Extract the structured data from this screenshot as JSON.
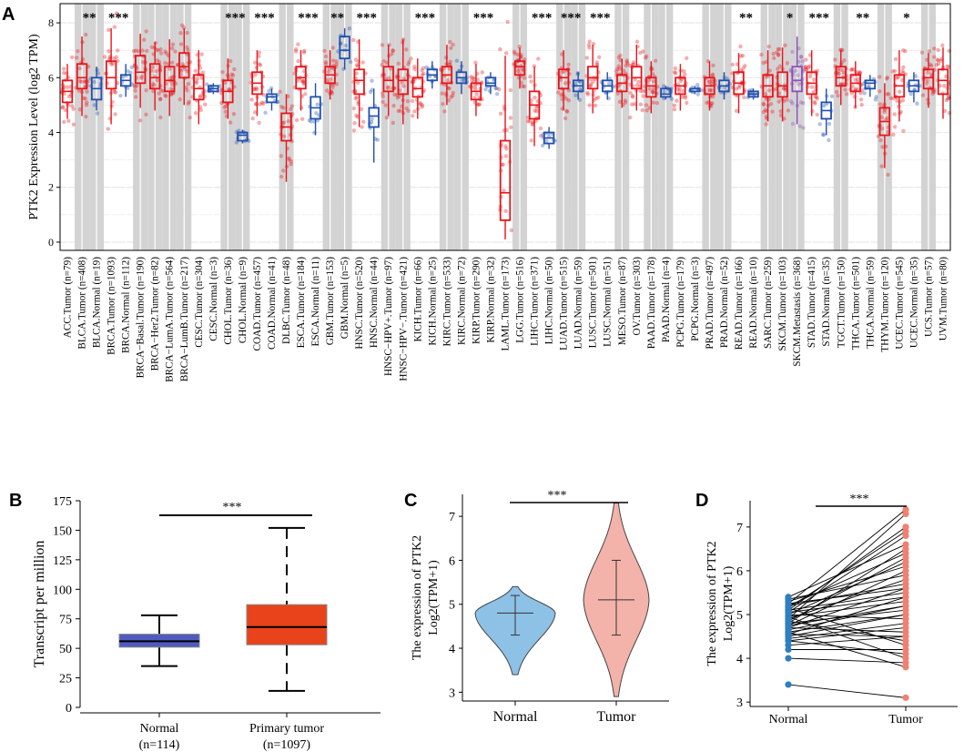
{
  "panel_labels": [
    "A",
    "B",
    "C",
    "D"
  ],
  "chart_data": [
    {
      "panel": "A",
      "type": "box",
      "ylabel": "PTK2 Expression Level (log2 TPM)",
      "ylim": [
        -0.3,
        8.7
      ],
      "yticks": [
        0,
        2,
        4,
        6,
        8
      ],
      "colors": {
        "tumor": "#e8141a",
        "normal": "#1f4fb0",
        "metastasis": "#8a4fb8",
        "shade": "#d3d3d3"
      },
      "categories": [
        {
          "label": "ACC.Tumor (n=79)",
          "kind": "tumor",
          "q1": 5.1,
          "median": 5.5,
          "q3": 5.9,
          "lo": 4.5,
          "hi": 6.5,
          "sig": "",
          "shade": false
        },
        {
          "label": "BLCA.Tumor (n=408)",
          "kind": "tumor",
          "q1": 5.6,
          "median": 6.0,
          "q3": 6.5,
          "lo": 4.6,
          "hi": 7.5,
          "sig": "**",
          "shade": true
        },
        {
          "label": "BLCA.Normal (n=19)",
          "kind": "normal",
          "q1": 5.2,
          "median": 5.6,
          "q3": 6.0,
          "lo": 4.8,
          "hi": 6.4,
          "sig": "",
          "shade": true
        },
        {
          "label": "BRCA.Tumor (n=1093)",
          "kind": "tumor",
          "q1": 5.6,
          "median": 6.0,
          "q3": 6.6,
          "lo": 4.3,
          "hi": 7.8,
          "sig": "***",
          "shade": false
        },
        {
          "label": "BRCA.Normal (n=112)",
          "kind": "normal",
          "q1": 5.7,
          "median": 5.9,
          "q3": 6.1,
          "lo": 5.3,
          "hi": 6.5,
          "sig": "",
          "shade": false
        },
        {
          "label": "BRCA−Basal.Tumor (n=190)",
          "kind": "tumor",
          "q1": 5.8,
          "median": 6.2,
          "q3": 6.8,
          "lo": 4.9,
          "hi": 7.6,
          "sig": "",
          "shade": true
        },
        {
          "label": "BRCA−Her2.Tumor (n=82)",
          "kind": "tumor",
          "q1": 5.6,
          "median": 6.0,
          "q3": 6.5,
          "lo": 4.8,
          "hi": 7.3,
          "sig": "",
          "shade": true
        },
        {
          "label": "BRCA−LumA.Tumor (n=564)",
          "kind": "tumor",
          "q1": 5.5,
          "median": 5.9,
          "q3": 6.4,
          "lo": 4.6,
          "hi": 7.4,
          "sig": "",
          "shade": true
        },
        {
          "label": "BRCA−LumB.Tumor (n=217)",
          "kind": "tumor",
          "q1": 6.0,
          "median": 6.4,
          "q3": 6.9,
          "lo": 5.0,
          "hi": 7.8,
          "sig": "",
          "shade": true
        },
        {
          "label": "CESC.Tumor (n=304)",
          "kind": "tumor",
          "q1": 5.2,
          "median": 5.6,
          "q3": 6.1,
          "lo": 4.3,
          "hi": 7.0,
          "sig": "",
          "shade": false
        },
        {
          "label": "CESC.Normal (n=3)",
          "kind": "normal",
          "q1": 5.5,
          "median": 5.6,
          "q3": 5.7,
          "lo": 5.4,
          "hi": 5.8,
          "sig": "",
          "shade": false
        },
        {
          "label": "CHOL.Tumor (n=36)",
          "kind": "tumor",
          "q1": 5.1,
          "median": 5.5,
          "q3": 5.9,
          "lo": 4.5,
          "hi": 6.7,
          "sig": "***",
          "shade": true
        },
        {
          "label": "CHOL.Normal (n=9)",
          "kind": "normal",
          "q1": 3.7,
          "median": 3.9,
          "q3": 4.0,
          "lo": 3.6,
          "hi": 4.1,
          "sig": "",
          "shade": true
        },
        {
          "label": "COAD.Tumor (n=457)",
          "kind": "tumor",
          "q1": 5.4,
          "median": 5.8,
          "q3": 6.2,
          "lo": 4.6,
          "hi": 7.0,
          "sig": "***",
          "shade": false
        },
        {
          "label": "COAD.Normal (n=41)",
          "kind": "normal",
          "q1": 5.1,
          "median": 5.3,
          "q3": 5.4,
          "lo": 4.8,
          "hi": 5.6,
          "sig": "",
          "shade": false
        },
        {
          "label": "DLBC.Tumor (n=48)",
          "kind": "tumor",
          "q1": 3.7,
          "median": 4.2,
          "q3": 4.7,
          "lo": 2.2,
          "hi": 5.4,
          "sig": "",
          "shade": true
        },
        {
          "label": "ESCA.Tumor (n=184)",
          "kind": "tumor",
          "q1": 5.6,
          "median": 6.0,
          "q3": 6.4,
          "lo": 4.8,
          "hi": 7.0,
          "sig": "***",
          "shade": false
        },
        {
          "label": "ESCA.Normal (n=11)",
          "kind": "normal",
          "q1": 4.5,
          "median": 4.9,
          "q3": 5.3,
          "lo": 3.9,
          "hi": 5.8,
          "sig": "",
          "shade": false
        },
        {
          "label": "GBM.Tumor (n=153)",
          "kind": "tumor",
          "q1": 5.8,
          "median": 6.1,
          "q3": 6.4,
          "lo": 5.2,
          "hi": 7.0,
          "sig": "**",
          "shade": true
        },
        {
          "label": "GBM.Normal (n=5)",
          "kind": "normal",
          "q1": 6.7,
          "median": 7.0,
          "q3": 7.5,
          "lo": 6.3,
          "hi": 7.8,
          "sig": "",
          "shade": true
        },
        {
          "label": "HNSC.Tumor (n=520)",
          "kind": "tumor",
          "q1": 5.4,
          "median": 5.9,
          "q3": 6.3,
          "lo": 4.2,
          "hi": 7.4,
          "sig": "***",
          "shade": false
        },
        {
          "label": "HNSC.Normal (n=44)",
          "kind": "normal",
          "q1": 4.2,
          "median": 4.6,
          "q3": 4.9,
          "lo": 2.9,
          "hi": 5.6,
          "sig": "",
          "shade": false
        },
        {
          "label": "HNSC−HPV+.Tumor (n=97)",
          "kind": "tumor",
          "q1": 5.5,
          "median": 5.9,
          "q3": 6.4,
          "lo": 4.6,
          "hi": 7.2,
          "sig": "",
          "shade": true
        },
        {
          "label": "HNSC−HPV−.Tumor (n=421)",
          "kind": "tumor",
          "q1": 5.4,
          "median": 5.9,
          "q3": 6.3,
          "lo": 4.3,
          "hi": 7.4,
          "sig": "",
          "shade": true
        },
        {
          "label": "KICH.Tumor (n=66)",
          "kind": "tumor",
          "q1": 5.3,
          "median": 5.6,
          "q3": 6.0,
          "lo": 4.5,
          "hi": 6.7,
          "sig": "***",
          "shade": false
        },
        {
          "label": "KICH.Normal (n=25)",
          "kind": "normal",
          "q1": 5.9,
          "median": 6.1,
          "q3": 6.3,
          "lo": 5.6,
          "hi": 6.6,
          "sig": "",
          "shade": false
        },
        {
          "label": "KIRC.Tumor (n=533)",
          "kind": "tumor",
          "q1": 5.8,
          "median": 6.1,
          "q3": 6.4,
          "lo": 5.0,
          "hi": 7.2,
          "sig": "",
          "shade": true
        },
        {
          "label": "KIRC.Normal (n=72)",
          "kind": "normal",
          "q1": 5.8,
          "median": 6.0,
          "q3": 6.2,
          "lo": 5.4,
          "hi": 6.6,
          "sig": "",
          "shade": true
        },
        {
          "label": "KIRP.Tumor (n=290)",
          "kind": "tumor",
          "q1": 5.2,
          "median": 5.5,
          "q3": 5.8,
          "lo": 4.6,
          "hi": 6.5,
          "sig": "***",
          "shade": false
        },
        {
          "label": "KIRP.Normal (n=32)",
          "kind": "normal",
          "q1": 5.7,
          "median": 5.8,
          "q3": 6.0,
          "lo": 5.4,
          "hi": 6.2,
          "sig": "",
          "shade": false
        },
        {
          "label": "LAML.Tumor (n=173)",
          "kind": "tumor",
          "q1": 0.8,
          "median": 1.8,
          "q3": 3.7,
          "lo": 0.1,
          "hi": 6.8,
          "sig": "",
          "shade": false
        },
        {
          "label": "LGG.Tumor (n=516)",
          "kind": "tumor",
          "q1": 6.1,
          "median": 6.4,
          "q3": 6.6,
          "lo": 5.6,
          "hi": 7.1,
          "sig": "",
          "shade": true
        },
        {
          "label": "LIHC.Tumor (n=371)",
          "kind": "tumor",
          "q1": 4.5,
          "median": 5.0,
          "q3": 5.5,
          "lo": 3.5,
          "hi": 6.4,
          "sig": "***",
          "shade": false
        },
        {
          "label": "LIHC.Normal (n=50)",
          "kind": "normal",
          "q1": 3.6,
          "median": 3.8,
          "q3": 4.0,
          "lo": 3.4,
          "hi": 4.2,
          "sig": "",
          "shade": false
        },
        {
          "label": "LUAD.Tumor (n=515)",
          "kind": "tumor",
          "q1": 5.6,
          "median": 6.0,
          "q3": 6.3,
          "lo": 4.8,
          "hi": 7.0,
          "sig": "***",
          "shade": true
        },
        {
          "label": "LUAD.Normal (n=59)",
          "kind": "normal",
          "q1": 5.5,
          "median": 5.7,
          "q3": 5.9,
          "lo": 5.2,
          "hi": 6.2,
          "sig": "",
          "shade": true
        },
        {
          "label": "LUSC.Tumor (n=501)",
          "kind": "tumor",
          "q1": 5.6,
          "median": 6.0,
          "q3": 6.4,
          "lo": 4.7,
          "hi": 7.2,
          "sig": "***",
          "shade": false
        },
        {
          "label": "LUSC.Normal (n=51)",
          "kind": "normal",
          "q1": 5.5,
          "median": 5.7,
          "q3": 5.9,
          "lo": 5.2,
          "hi": 6.2,
          "sig": "",
          "shade": false
        },
        {
          "label": "MESO.Tumor (n=87)",
          "kind": "tumor",
          "q1": 5.5,
          "median": 5.8,
          "q3": 6.1,
          "lo": 4.9,
          "hi": 6.7,
          "sig": "",
          "shade": true
        },
        {
          "label": "OV.Tumor (n=303)",
          "kind": "tumor",
          "q1": 5.6,
          "median": 6.0,
          "q3": 6.4,
          "lo": 4.8,
          "hi": 7.2,
          "sig": "",
          "shade": false
        },
        {
          "label": "PAAD.Tumor (n=178)",
          "kind": "tumor",
          "q1": 5.3,
          "median": 5.7,
          "q3": 6.0,
          "lo": 4.7,
          "hi": 6.6,
          "sig": "",
          "shade": true
        },
        {
          "label": "PAAD.Normal (n=4)",
          "kind": "normal",
          "q1": 5.3,
          "median": 5.4,
          "q3": 5.6,
          "lo": 5.2,
          "hi": 5.7,
          "sig": "",
          "shade": true
        },
        {
          "label": "PCPG.Tumor (n=179)",
          "kind": "tumor",
          "q1": 5.4,
          "median": 5.7,
          "q3": 6.0,
          "lo": 4.8,
          "hi": 6.5,
          "sig": "",
          "shade": false
        },
        {
          "label": "PCPG.Normal (n=3)",
          "kind": "normal",
          "q1": 5.5,
          "median": 5.6,
          "q3": 5.6,
          "lo": 5.4,
          "hi": 5.7,
          "sig": "",
          "shade": false
        },
        {
          "label": "PRAD.Tumor (n=497)",
          "kind": "tumor",
          "q1": 5.4,
          "median": 5.7,
          "q3": 6.0,
          "lo": 4.8,
          "hi": 6.6,
          "sig": "",
          "shade": true
        },
        {
          "label": "PRAD.Normal (n=52)",
          "kind": "normal",
          "q1": 5.5,
          "median": 5.7,
          "q3": 5.9,
          "lo": 5.2,
          "hi": 6.2,
          "sig": "",
          "shade": true
        },
        {
          "label": "READ.Tumor (n=166)",
          "kind": "tumor",
          "q1": 5.4,
          "median": 5.8,
          "q3": 6.2,
          "lo": 4.7,
          "hi": 6.9,
          "sig": "**",
          "shade": false
        },
        {
          "label": "READ.Normal (n=10)",
          "kind": "normal",
          "q1": 5.3,
          "median": 5.4,
          "q3": 5.5,
          "lo": 5.2,
          "hi": 5.6,
          "sig": "",
          "shade": false
        },
        {
          "label": "SARC.Tumor (n=259)",
          "kind": "tumor",
          "q1": 5.3,
          "median": 5.7,
          "q3": 6.1,
          "lo": 4.4,
          "hi": 7.0,
          "sig": "",
          "shade": true
        },
        {
          "label": "SKCM.Tumor (n=103)",
          "kind": "tumor",
          "q1": 5.3,
          "median": 5.7,
          "q3": 6.2,
          "lo": 4.4,
          "hi": 7.1,
          "sig": "*",
          "shade": true
        },
        {
          "label": "SKCM.Metastasis (n=368)",
          "kind": "metastasis",
          "q1": 5.5,
          "median": 5.9,
          "q3": 6.4,
          "lo": 4.3,
          "hi": 7.5,
          "sig": "",
          "shade": true
        },
        {
          "label": "STAD.Tumor (n=415)",
          "kind": "tumor",
          "q1": 5.4,
          "median": 5.8,
          "q3": 6.2,
          "lo": 4.6,
          "hi": 7.0,
          "sig": "***",
          "shade": false
        },
        {
          "label": "STAD.Normal (n=35)",
          "kind": "normal",
          "q1": 4.5,
          "median": 4.8,
          "q3": 5.1,
          "lo": 3.9,
          "hi": 5.6,
          "sig": "",
          "shade": false
        },
        {
          "label": "TGCT.Tumor (n=150)",
          "kind": "tumor",
          "q1": 5.7,
          "median": 6.0,
          "q3": 6.4,
          "lo": 5.0,
          "hi": 7.0,
          "sig": "",
          "shade": true
        },
        {
          "label": "THCA.Tumor (n=501)",
          "kind": "tumor",
          "q1": 5.5,
          "median": 5.8,
          "q3": 6.1,
          "lo": 4.9,
          "hi": 6.6,
          "sig": "**",
          "shade": false
        },
        {
          "label": "THCA.Normal (n=59)",
          "kind": "normal",
          "q1": 5.6,
          "median": 5.8,
          "q3": 5.9,
          "lo": 5.3,
          "hi": 6.1,
          "sig": "",
          "shade": false
        },
        {
          "label": "THYM.Tumor (n=120)",
          "kind": "tumor",
          "q1": 3.9,
          "median": 4.4,
          "q3": 4.9,
          "lo": 2.7,
          "hi": 5.8,
          "sig": "",
          "shade": true
        },
        {
          "label": "UCEC.Tumor (n=545)",
          "kind": "tumor",
          "q1": 5.3,
          "median": 5.7,
          "q3": 6.1,
          "lo": 4.4,
          "hi": 7.0,
          "sig": "*",
          "shade": false
        },
        {
          "label": "UCEC.Normal (n=35)",
          "kind": "normal",
          "q1": 5.5,
          "median": 5.7,
          "q3": 5.9,
          "lo": 5.1,
          "hi": 6.2,
          "sig": "",
          "shade": false
        },
        {
          "label": "UCS.Tumor (n=57)",
          "kind": "tumor",
          "q1": 5.6,
          "median": 6.0,
          "q3": 6.3,
          "lo": 4.9,
          "hi": 6.9,
          "sig": "",
          "shade": true
        },
        {
          "label": "UVM.Tumor (n=80)",
          "kind": "tumor",
          "q1": 5.4,
          "median": 5.9,
          "q3": 6.3,
          "lo": 4.5,
          "hi": 7.1,
          "sig": "",
          "shade": false
        }
      ]
    },
    {
      "panel": "B",
      "type": "box",
      "ylabel": "Transcript per million",
      "ylim": [
        0,
        175
      ],
      "yticks": [
        0,
        25,
        50,
        75,
        100,
        125,
        150,
        175
      ],
      "groups": [
        {
          "name": "Normal",
          "n": "(n=114)",
          "q1": 51,
          "median": 56,
          "q3": 62,
          "lo": 35,
          "hi": 78,
          "color": "#4f5bbf"
        },
        {
          "name": "Primary tumor",
          "n": "(n=1097)",
          "q1": 53,
          "median": 68,
          "q3": 87,
          "lo": 14,
          "hi": 152,
          "color": "#e8431a"
        }
      ],
      "significance": "***"
    },
    {
      "panel": "C",
      "type": "violin",
      "ylabel_line1": "The expression of  PTK2",
      "ylabel_line2": "Log2(TPM+1)",
      "ylim": [
        2.8,
        7.5
      ],
      "yticks": [
        3,
        4,
        5,
        6,
        7
      ],
      "groups": [
        {
          "name": "Normal",
          "min": 3.4,
          "q1": 4.3,
          "median": 4.8,
          "q3": 5.2,
          "max": 5.4,
          "color": "#8ec1e6"
        },
        {
          "name": "Tumor",
          "min": 2.9,
          "q1": 4.3,
          "median": 5.1,
          "q3": 6.0,
          "max": 7.3,
          "color": "#f3b3aa"
        }
      ],
      "significance": "***"
    },
    {
      "panel": "D",
      "type": "paired",
      "ylabel_line1": "The expression of  PTK2",
      "ylabel_line2": "Log2(TPM+1)",
      "ylim": [
        2.9,
        7.6
      ],
      "yticks": [
        3,
        4,
        5,
        6,
        7
      ],
      "groups": [
        {
          "name": "Normal",
          "color": "#2f7fbf"
        },
        {
          "name": "Tumor",
          "color": "#f08070"
        }
      ],
      "pairs_normal": [
        3.4,
        4.0,
        4.2,
        4.3,
        4.4,
        4.45,
        4.5,
        4.55,
        4.6,
        4.65,
        4.7,
        4.7,
        4.75,
        4.8,
        4.8,
        4.85,
        4.9,
        4.9,
        4.95,
        5.0,
        5.0,
        5.05,
        5.1,
        5.1,
        5.15,
        5.2,
        5.2,
        5.25,
        5.3,
        5.35,
        5.4,
        4.4,
        4.6,
        4.85,
        5.05,
        4.95,
        4.75,
        5.15,
        4.55,
        5.25
      ],
      "pairs_tumor": [
        3.1,
        3.9,
        4.2,
        4.5,
        4.1,
        4.8,
        5.0,
        5.4,
        3.8,
        5.2,
        5.6,
        4.6,
        6.0,
        5.1,
        6.5,
        4.4,
        5.8,
        7.3,
        5.3,
        6.2,
        4.9,
        6.8,
        5.5,
        7.0,
        4.3,
        6.4,
        5.7,
        7.4,
        6.1,
        5.9,
        6.6,
        4.7,
        5.0,
        6.3,
        5.4,
        4.0,
        5.2,
        6.9,
        4.5,
        5.6
      ],
      "significance": "***"
    }
  ]
}
